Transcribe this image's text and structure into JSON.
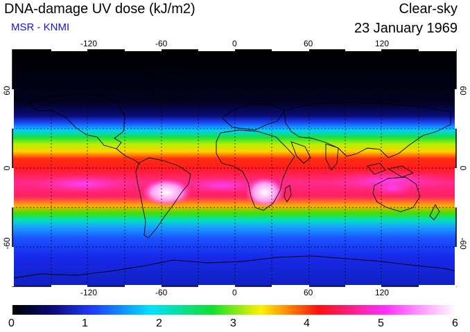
{
  "header": {
    "title": "DNA-damage UV dose (kJ/m2)",
    "source": "MSR - KNMI",
    "mode": "Clear-sky",
    "date": "23 January 1969"
  },
  "map": {
    "lon_ticks": [
      "-120",
      "-60",
      "0",
      "60",
      "120"
    ],
    "lat_ticks": [
      "60",
      "0",
      "-60"
    ],
    "gridlines": "dashed",
    "projection": "equirectangular",
    "color_field": "UV dose"
  },
  "colorbar": {
    "labels": [
      "0",
      "1",
      "2",
      "3",
      "4",
      "5",
      "6"
    ],
    "min": 0,
    "max": 6,
    "colors": [
      "#000000",
      "#0a0a7a",
      "#1e3cff",
      "#00e0ff",
      "#10e030",
      "#fff000",
      "#ff1010",
      "#ff30ff",
      "#ffffff"
    ]
  }
}
